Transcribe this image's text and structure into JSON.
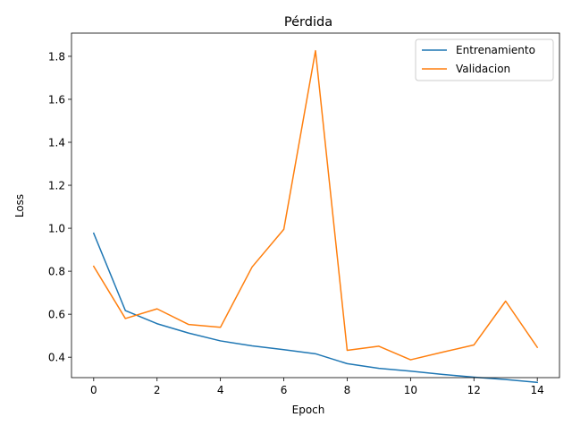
{
  "chart_data": {
    "type": "line",
    "title": "Pérdida",
    "xlabel": "Epoch",
    "ylabel": "Loss",
    "x": [
      0,
      1,
      2,
      3,
      4,
      5,
      6,
      7,
      8,
      9,
      10,
      11,
      12,
      13,
      14
    ],
    "xlim": [
      -0.7,
      14.7
    ],
    "ylim": [
      0.305,
      1.908
    ],
    "xticks": [
      0,
      2,
      4,
      6,
      8,
      10,
      12,
      14
    ],
    "yticks": [
      0.4,
      0.6,
      0.8,
      1.0,
      1.2,
      1.4,
      1.6,
      1.8
    ],
    "xtick_labels": [
      "0",
      "2",
      "4",
      "6",
      "8",
      "10",
      "12",
      "14"
    ],
    "ytick_labels": [
      "0.4",
      "0.6",
      "0.8",
      "1.0",
      "1.2",
      "1.4",
      "1.6",
      "1.8"
    ],
    "grid": false,
    "legend_position": "top-right",
    "series": [
      {
        "name": "Entrenamiento",
        "color": "#1f77b4",
        "values": [
          0.977,
          0.617,
          0.556,
          0.512,
          0.476,
          0.453,
          0.435,
          0.416,
          0.37,
          0.348,
          0.335,
          0.32,
          0.307,
          0.296,
          0.283
        ]
      },
      {
        "name": "Validacion",
        "color": "#ff7f0e",
        "values": [
          0.823,
          0.58,
          0.625,
          0.552,
          0.539,
          0.82,
          0.995,
          1.826,
          0.432,
          0.451,
          0.388,
          0.423,
          0.457,
          0.661,
          0.446
        ]
      }
    ]
  }
}
